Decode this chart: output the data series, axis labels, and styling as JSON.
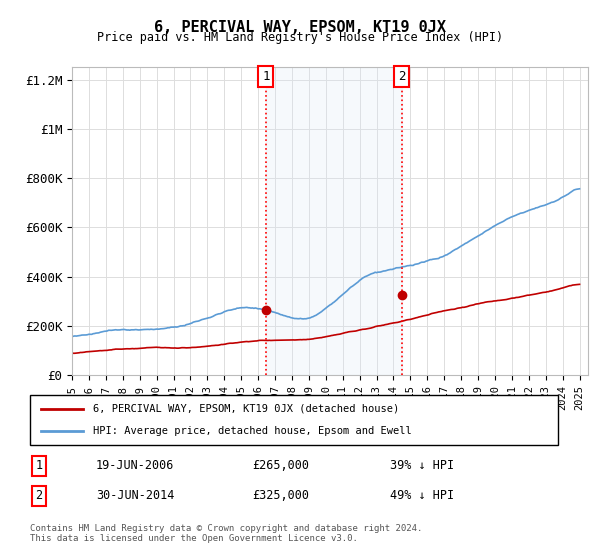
{
  "title": "6, PERCIVAL WAY, EPSOM, KT19 0JX",
  "subtitle": "Price paid vs. HM Land Registry's House Price Index (HPI)",
  "ylabel_ticks": [
    "£0",
    "£200K",
    "£400K",
    "£600K",
    "£800K",
    "£1M",
    "£1.2M"
  ],
  "ytick_vals": [
    0,
    200000,
    400000,
    600000,
    800000,
    1000000,
    1200000
  ],
  "ylim": [
    0,
    1250000
  ],
  "xlim_start": 1995.0,
  "xlim_end": 2025.5,
  "hpi_color": "#5b9bd5",
  "price_color": "#c00000",
  "sale1_x": 2006.46,
  "sale1_y": 265000,
  "sale2_x": 2014.5,
  "sale2_y": 325000,
  "vline_color": "#ff0000",
  "vline_style": ":",
  "shade_color": "#dce9f7",
  "legend_entries": [
    "6, PERCIVAL WAY, EPSOM, KT19 0JX (detached house)",
    "HPI: Average price, detached house, Epsom and Ewell"
  ],
  "table_rows": [
    {
      "num": "1",
      "date": "19-JUN-2006",
      "price": "£265,000",
      "note": "39% ↓ HPI"
    },
    {
      "num": "2",
      "date": "30-JUN-2014",
      "price": "£325,000",
      "note": "49% ↓ HPI"
    }
  ],
  "footnote": "Contains HM Land Registry data © Crown copyright and database right 2024.\nThis data is licensed under the Open Government Licence v3.0.",
  "bg_color": "#ffffff",
  "plot_bg_color": "#ffffff",
  "grid_color": "#dddddd"
}
